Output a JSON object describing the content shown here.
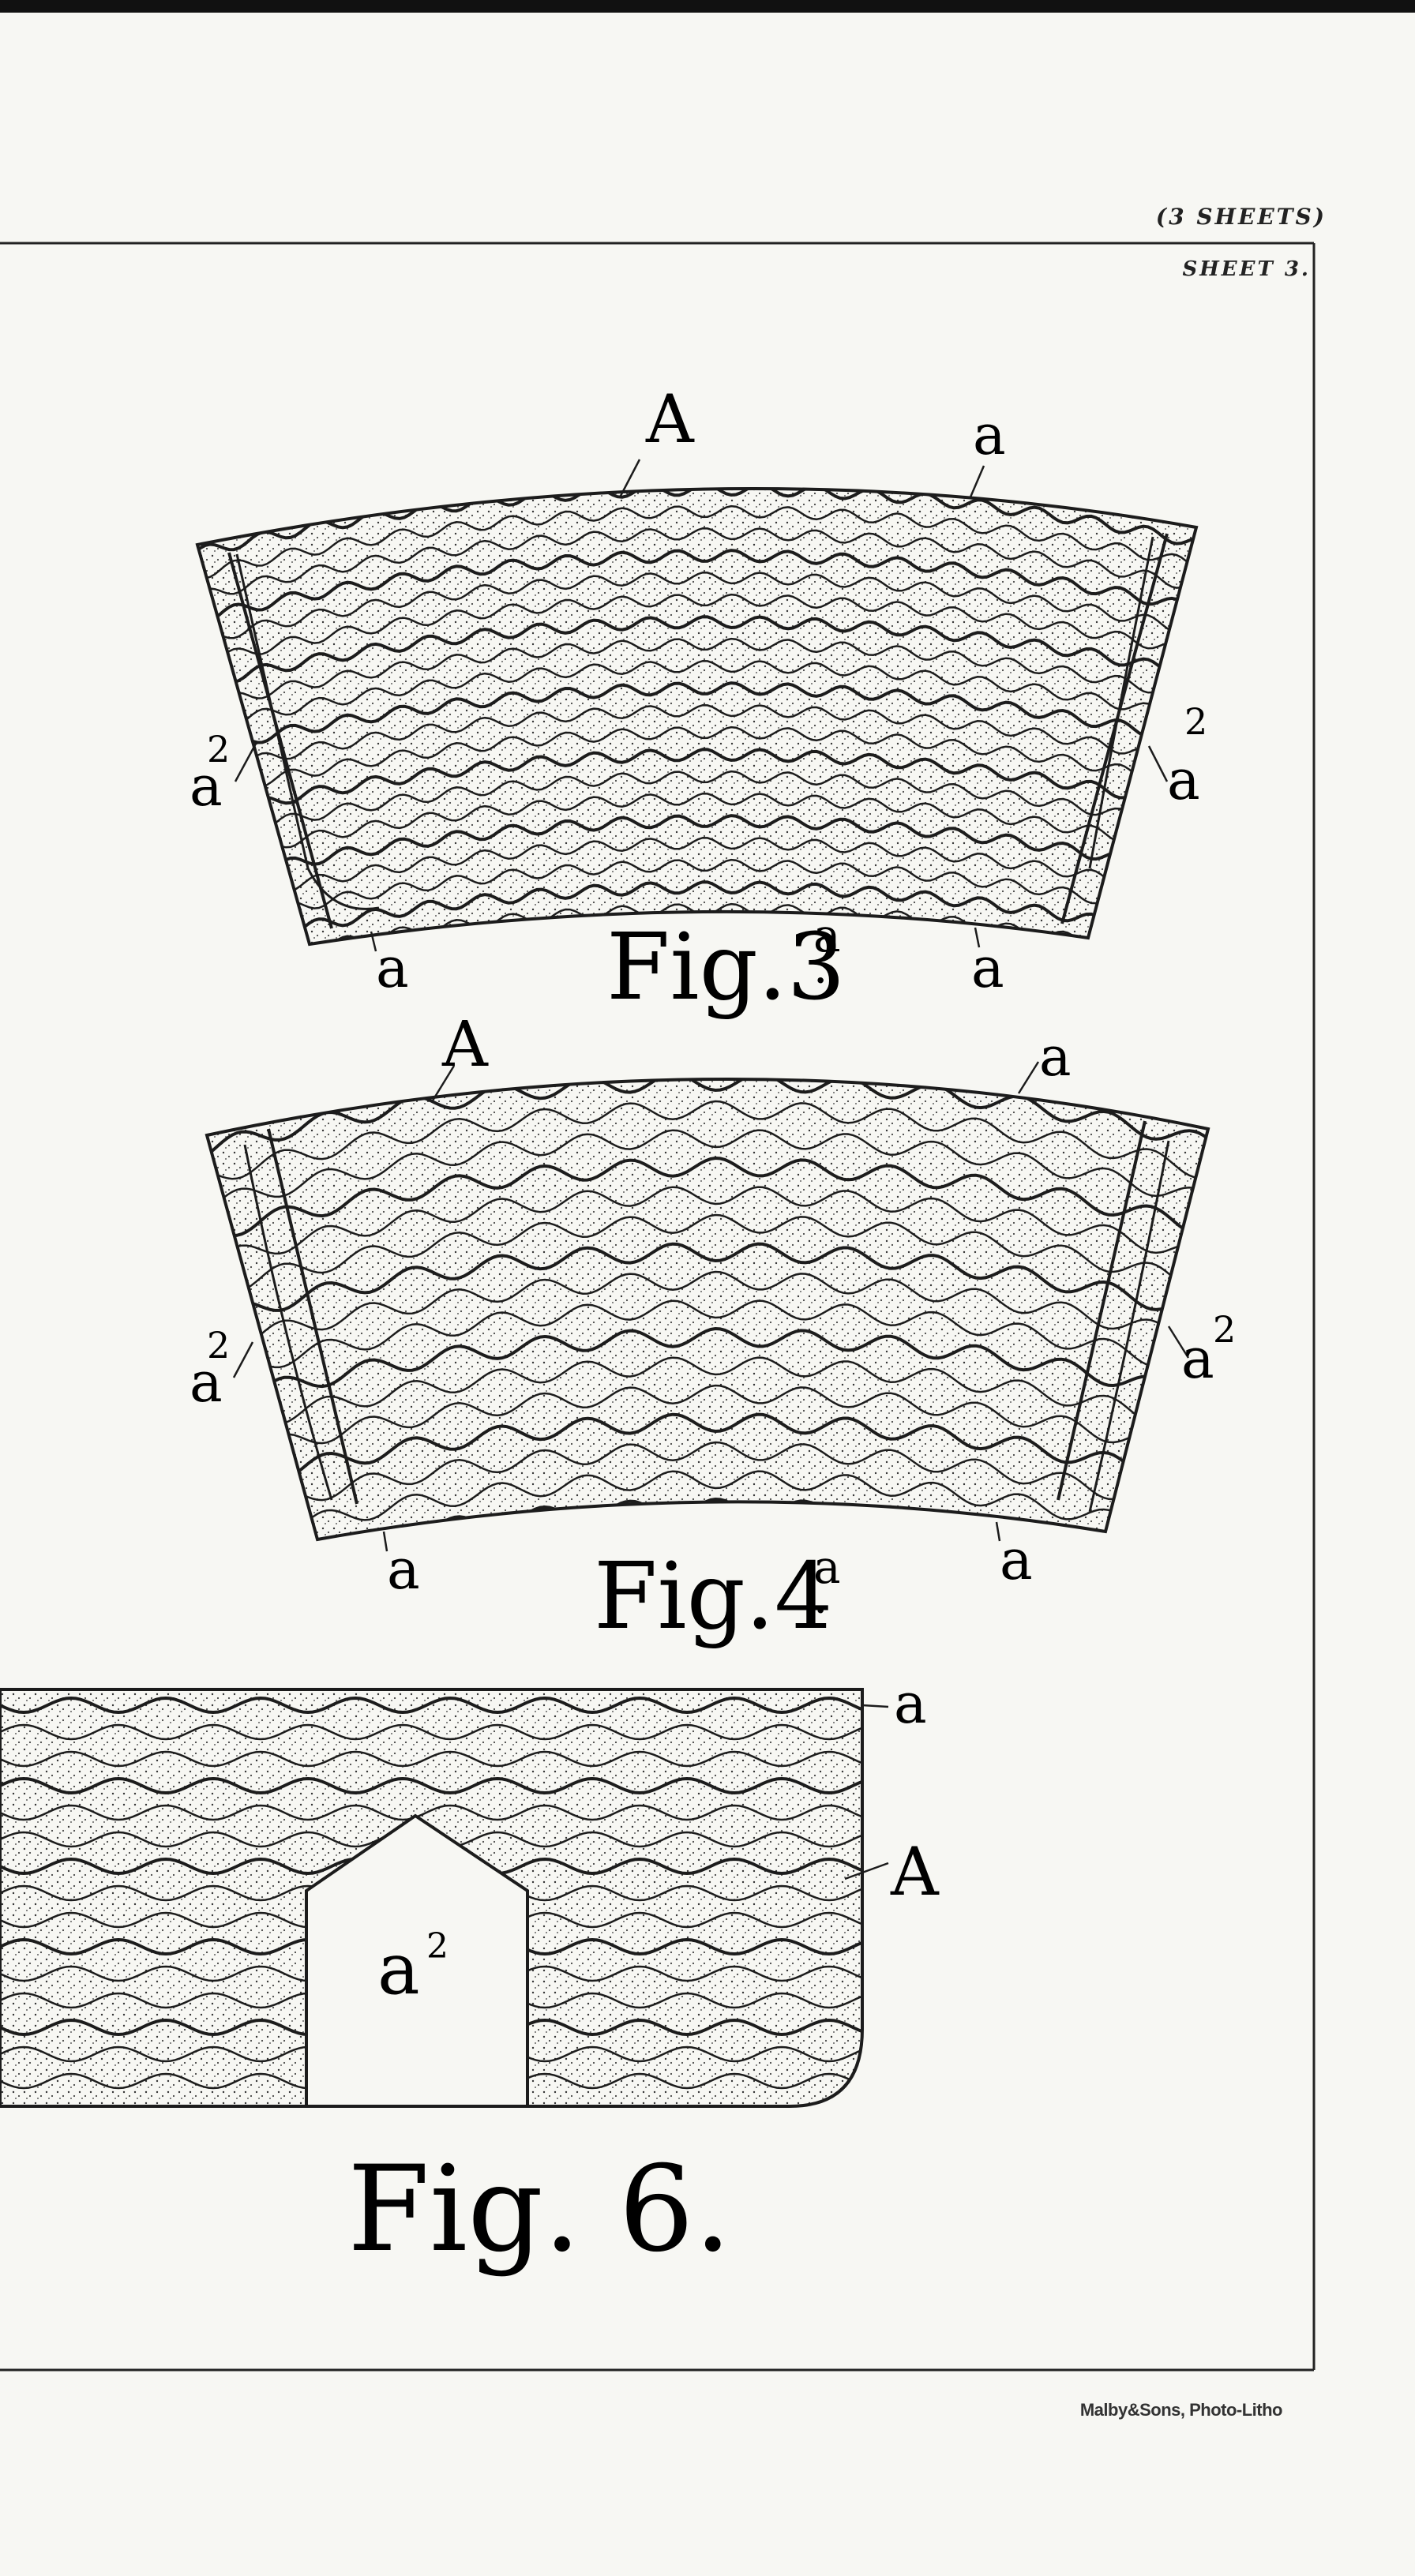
{
  "header": {
    "sheets": "(3 SHEETS)",
    "sheet_no": "SHEET 3."
  },
  "figures": [
    {
      "caption": "Fig.3",
      "caption_sup": "a",
      "labels": {
        "A": "A",
        "a_top": "a",
        "a_left": "a",
        "a_right": "a",
        "a2_left": "a",
        "a2_right": "a",
        "sup": "2"
      }
    },
    {
      "caption": "Fig.4",
      "caption_sup": "a",
      "labels": {
        "A": "A",
        "a_top": "a",
        "a_left": "a",
        "a_right": "a",
        "a2_left": "a",
        "a2_right": "a",
        "sup": "2"
      }
    },
    {
      "caption": "Fig. 6.",
      "labels": {
        "a": "a",
        "A": "A",
        "a2": "a",
        "sup": "2"
      }
    }
  ],
  "credit": "Malby&Sons, Photo-Litho",
  "colors": {
    "ink": "#1c1c1c",
    "paper": "#f7f7f3"
  }
}
